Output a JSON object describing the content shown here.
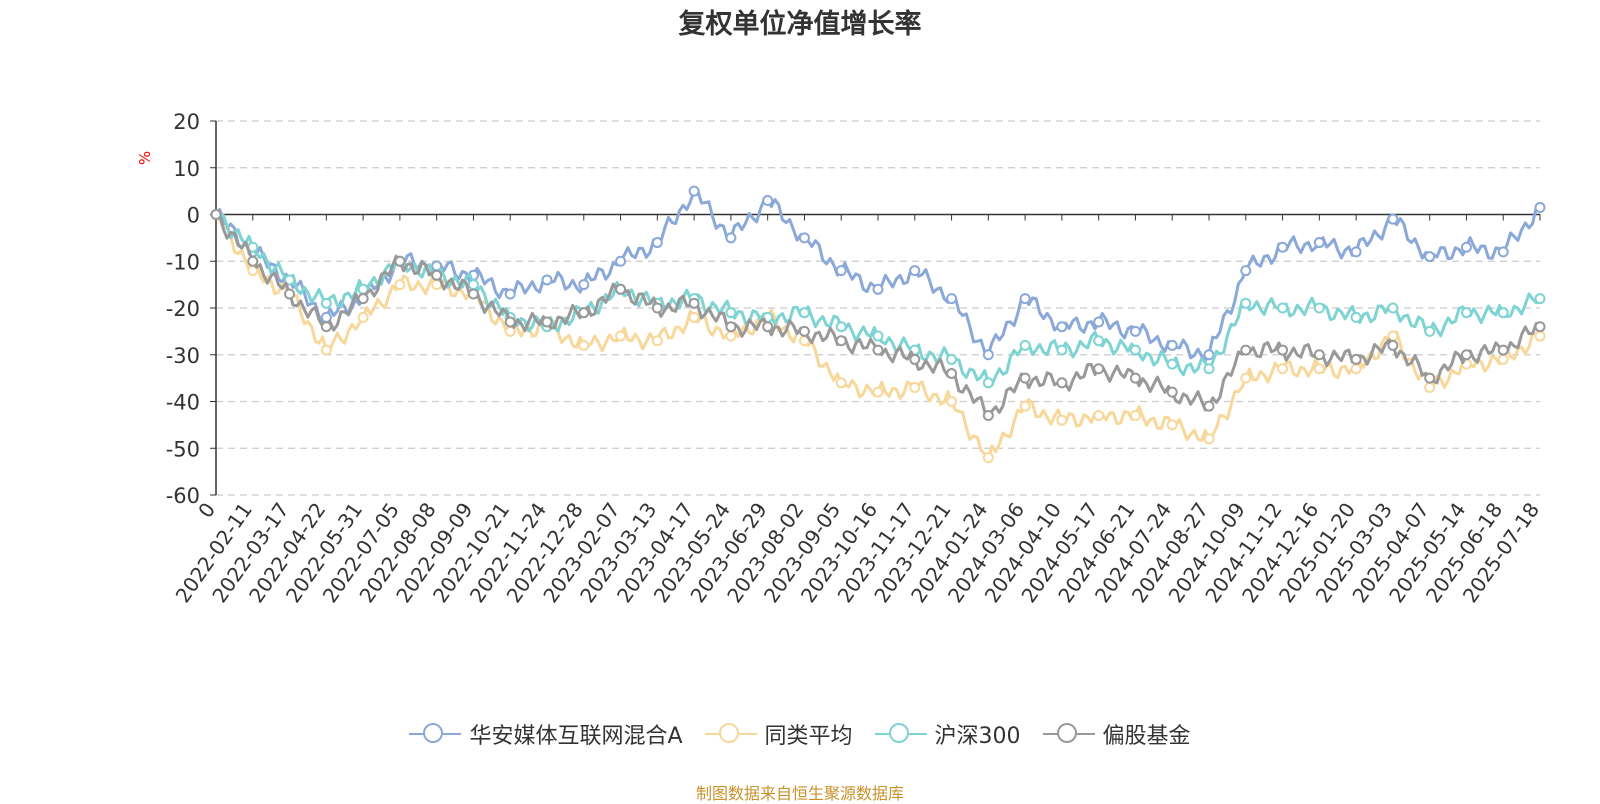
{
  "title": "复权单位净值增长率",
  "source_note": "制图数据来自恒生聚源数据库",
  "chart_data": {
    "type": "line",
    "title": "复权单位净值增长率",
    "ylabel": "%",
    "ylim": [
      -60,
      20
    ],
    "yticks": [
      20,
      10,
      0,
      -10,
      -20,
      -30,
      -40,
      -50,
      -60
    ],
    "grid": true,
    "legend_position": "bottom",
    "categories": [
      "0",
      "2022-02-11",
      "2022-03-17",
      "2022-04-22",
      "2022-05-31",
      "2022-07-05",
      "2022-08-08",
      "2022-09-09",
      "2022-10-21",
      "2022-11-24",
      "2022-12-28",
      "2023-02-07",
      "2023-03-13",
      "2023-04-17",
      "2023-05-24",
      "2023-06-29",
      "2023-08-02",
      "2023-09-05",
      "2023-10-16",
      "2023-11-17",
      "2023-12-21",
      "2024-01-24",
      "2024-03-06",
      "2024-04-10",
      "2024-05-17",
      "2024-06-21",
      "2024-07-24",
      "2024-08-27",
      "2024-10-09",
      "2024-11-12",
      "2024-12-16",
      "2025-01-20",
      "2025-03-03",
      "2025-04-07",
      "2025-05-14",
      "2025-06-18",
      "2025-07-18"
    ],
    "series": [
      {
        "name": "华安媒体互联网混合A",
        "color": "#8aa8d8",
        "values": [
          0,
          -8,
          -14,
          -22,
          -18,
          -10,
          -11,
          -13,
          -17,
          -14,
          -15,
          -10,
          -6,
          5,
          -5,
          3,
          -5,
          -12,
          -16,
          -12,
          -18,
          -30,
          -18,
          -24,
          -23,
          -25,
          -28,
          -30,
          -12,
          -7,
          -6,
          -8,
          -1,
          -9,
          -7,
          -8,
          1.5
        ]
      },
      {
        "name": "同类平均",
        "color": "#f8d89a",
        "values": [
          0,
          -12,
          -17,
          -29,
          -22,
          -15,
          -15,
          -17,
          -25,
          -24,
          -28,
          -26,
          -27,
          -22,
          -26,
          -22,
          -27,
          -36,
          -38,
          -37,
          -40,
          -52,
          -41,
          -44,
          -43,
          -43,
          -45,
          -48,
          -35,
          -33,
          -33,
          -33,
          -26,
          -37,
          -32,
          -31,
          -26
        ]
      },
      {
        "name": "沪深300",
        "color": "#7ed3d3",
        "values": [
          0,
          -7,
          -14,
          -19,
          -16,
          -10,
          -13,
          -15,
          -22,
          -24,
          -21,
          -16,
          -19,
          -18,
          -21,
          -22,
          -21,
          -24,
          -26,
          -29,
          -31,
          -36,
          -28,
          -29,
          -27,
          -29,
          -32,
          -33,
          -19,
          -20,
          -20,
          -22,
          -20,
          -25,
          -21,
          -21,
          -18
        ]
      },
      {
        "name": "偏股基金",
        "color": "#999999",
        "values": [
          0,
          -10,
          -17,
          -24,
          -18,
          -10,
          -13,
          -17,
          -23,
          -23,
          -21,
          -16,
          -20,
          -19,
          -24,
          -24,
          -25,
          -27,
          -29,
          -31,
          -34,
          -43,
          -35,
          -36,
          -33,
          -35,
          -38,
          -41,
          -29,
          -29,
          -30,
          -31,
          -28,
          -35,
          -30,
          -29,
          -24
        ]
      }
    ]
  }
}
